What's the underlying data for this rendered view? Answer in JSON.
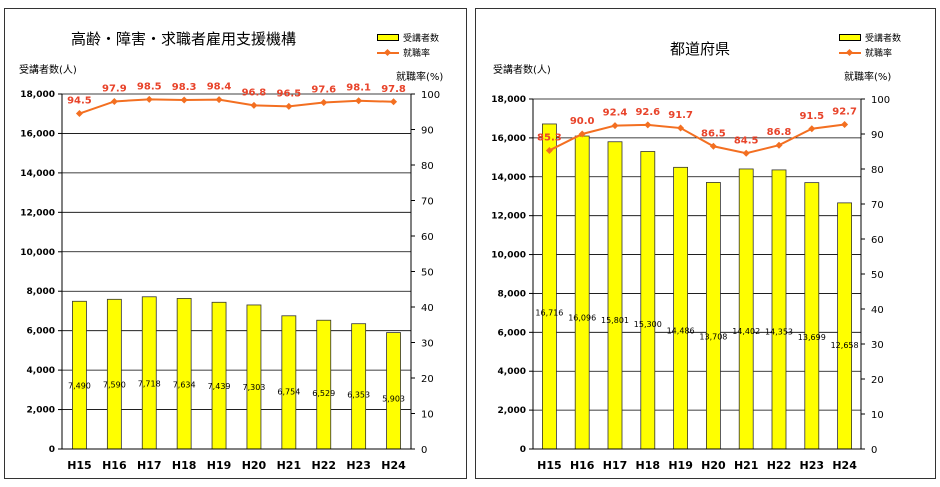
{
  "chart_data": [
    {
      "type": "bar",
      "title": "高齢・障害・求職者雇用支援機構",
      "categories": [
        "H15",
        "H16",
        "H17",
        "H18",
        "H19",
        "H20",
        "H21",
        "H22",
        "H23",
        "H24"
      ],
      "series": [
        {
          "name": "受講者数",
          "type": "bar",
          "axis": "left",
          "values": [
            7490,
            7590,
            7718,
            7634,
            7439,
            7303,
            6754,
            6529,
            6353,
            5903
          ],
          "labels": [
            "7,490",
            "7,590",
            "7,718",
            "7,634",
            "7,439",
            "7,303",
            "6,754",
            "6,529",
            "6,353",
            "5,903"
          ]
        },
        {
          "name": "就職率",
          "type": "line",
          "axis": "right",
          "values": [
            94.5,
            97.9,
            98.5,
            98.3,
            98.4,
            96.8,
            96.5,
            97.6,
            98.1,
            97.8
          ],
          "labels": [
            "94.5",
            "97.9",
            "98.5",
            "98.3",
            "98.4",
            "96.8",
            "96.5",
            "97.6",
            "98.1",
            "97.8"
          ]
        }
      ],
      "ylabel": "受講者数(人)",
      "y2label": "就職率(%)",
      "ylim": [
        0,
        18000
      ],
      "y2lim": [
        0,
        100
      ],
      "yticks": [
        "0",
        "2,000",
        "4,000",
        "6,000",
        "8,000",
        "10,000",
        "12,000",
        "14,000",
        "16,000",
        "18,000"
      ],
      "y2ticks": [
        "0",
        "10",
        "20",
        "30",
        "40",
        "50",
        "60",
        "70",
        "80",
        "90",
        "100"
      ],
      "grid": true,
      "legend": "top-right",
      "colors": {
        "bar": "#ffff00",
        "bar_edge": "#333333",
        "line": "#f36f21",
        "line_label": "#e8432a"
      }
    },
    {
      "type": "bar",
      "title": "都道府県",
      "categories": [
        "H15",
        "H16",
        "H17",
        "H18",
        "H19",
        "H20",
        "H21",
        "H22",
        "H23",
        "H24"
      ],
      "series": [
        {
          "name": "受講者数",
          "type": "bar",
          "axis": "left",
          "values": [
            16716,
            16096,
            15801,
            15300,
            14486,
            13708,
            14402,
            14353,
            13699,
            12658
          ],
          "labels": [
            "16,716",
            "16,096",
            "15,801",
            "15,300",
            "14,486",
            "13,708",
            "14,402",
            "14,353",
            "13,699",
            "12,658"
          ]
        },
        {
          "name": "就職率",
          "type": "line",
          "axis": "right",
          "values": [
            85.3,
            90.0,
            92.4,
            92.6,
            91.7,
            86.5,
            84.5,
            86.8,
            91.5,
            92.7
          ],
          "labels": [
            "85.3",
            "90.0",
            "92.4",
            "92.6",
            "91.7",
            "86.5",
            "84.5",
            "86.8",
            "91.5",
            "92.7"
          ]
        }
      ],
      "ylabel": "受講者数(人)",
      "y2label": "就職率(%)",
      "ylim": [
        0,
        18000
      ],
      "y2lim": [
        0,
        100
      ],
      "yticks": [
        "0",
        "2,000",
        "4,000",
        "6,000",
        "8,000",
        "10,000",
        "12,000",
        "14,000",
        "16,000",
        "18,000"
      ],
      "y2ticks": [
        "0",
        "10",
        "20",
        "30",
        "40",
        "50",
        "60",
        "70",
        "80",
        "90",
        "100"
      ],
      "grid": true,
      "legend": "top-right",
      "colors": {
        "bar": "#ffff00",
        "bar_edge": "#333333",
        "line": "#f36f21",
        "line_label": "#e8432a"
      }
    }
  ]
}
